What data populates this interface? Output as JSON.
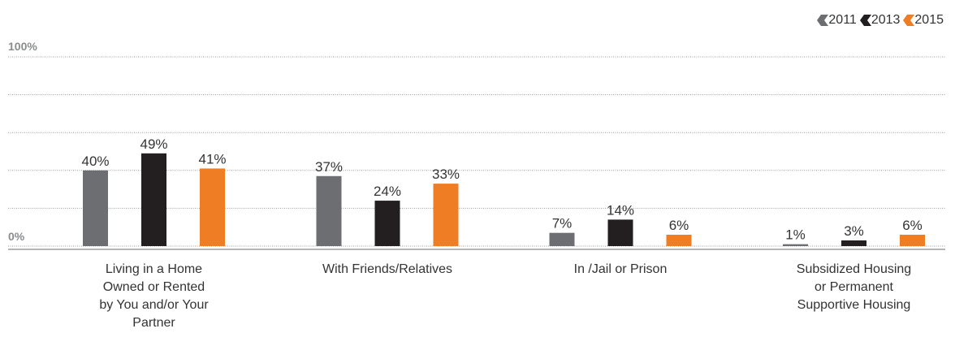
{
  "chart_data": {
    "type": "bar",
    "categories": [
      [
        "Living in a Home",
        "Owned or Rented",
        "by You and/or Your",
        "Partner"
      ],
      [
        "With Friends/Relatives"
      ],
      [
        "In /Jail or Prison"
      ],
      [
        "Subsidized Housing",
        "or Permanent",
        "Supportive Housing"
      ]
    ],
    "series": [
      {
        "name": "2011",
        "color": "#6d6e71",
        "values": [
          40,
          37,
          7,
          1
        ],
        "labels": [
          "40%",
          "37%",
          "7%",
          "1%"
        ]
      },
      {
        "name": "2013",
        "color": "#231f20",
        "values": [
          49,
          24,
          14,
          3
        ],
        "labels": [
          "49%",
          "24%",
          "14%",
          "3%"
        ]
      },
      {
        "name": "2015",
        "color": "#ee7d23",
        "values": [
          41,
          33,
          6,
          6
        ],
        "labels": [
          "41%",
          "33%",
          "6%",
          "6%"
        ]
      }
    ],
    "y_tick_labels": {
      "top": "100%",
      "bottom": "0%"
    },
    "ylim": [
      0,
      100
    ],
    "grid": true,
    "legend_position": "top-right"
  }
}
